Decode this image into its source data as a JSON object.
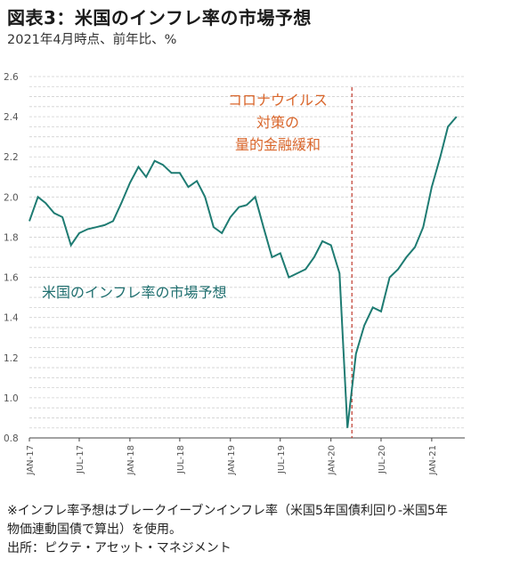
{
  "title": "図表3：米国のインフレ率の市場予想",
  "subtitle": "2021年4月時点、前年比、%",
  "footnotes": [
    "※インフレ率予想はブレークイーブンインフレ率（米国5年国債利回り-米国5年",
    "物価連動国債で算出）を使用。",
    "出所：ピクテ・アセット・マネジメント"
  ],
  "colors": {
    "line": "#1e7b72",
    "event_line": "#c0392b",
    "annotation": "#d9662b",
    "series_label": "#1f6f6f",
    "grid": "#d0d0d0"
  },
  "chart_data": {
    "type": "line",
    "title": "図表3：米国のインフレ率の市場予想",
    "subtitle": "2021年4月時点、前年比、%",
    "xlabel": "",
    "ylabel": "",
    "ylim": [
      0.8,
      2.6
    ],
    "yticks": [
      "2.6",
      "2.4",
      "2.2",
      "2.0",
      "1.8",
      "1.6",
      "1.4",
      "1.2",
      "1.0",
      "0.8"
    ],
    "xticks": [
      "JAN-17",
      "JUL-17",
      "JAN-18",
      "JUL-18",
      "JAN-19",
      "JUL-19",
      "JAN-20",
      "JUL-20",
      "JAN-21"
    ],
    "grid": true,
    "series": [
      {
        "name": "米国のインフレ率の市場予想",
        "x": [
          "2017-01",
          "2017-02",
          "2017-03",
          "2017-04",
          "2017-05",
          "2017-06",
          "2017-07",
          "2017-08",
          "2017-09",
          "2017-10",
          "2017-11",
          "2017-12",
          "2018-01",
          "2018-02",
          "2018-03",
          "2018-04",
          "2018-05",
          "2018-06",
          "2018-07",
          "2018-08",
          "2018-09",
          "2018-10",
          "2018-11",
          "2018-12",
          "2019-01",
          "2019-02",
          "2019-03",
          "2019-04",
          "2019-05",
          "2019-06",
          "2019-07",
          "2019-08",
          "2019-09",
          "2019-10",
          "2019-11",
          "2019-12",
          "2020-01",
          "2020-02",
          "2020-03",
          "2020-04",
          "2020-05",
          "2020-06",
          "2020-07",
          "2020-08",
          "2020-09",
          "2020-10",
          "2020-11",
          "2020-12",
          "2021-01",
          "2021-02",
          "2021-03",
          "2021-04"
        ],
        "values": [
          1.88,
          2.0,
          1.97,
          1.92,
          1.9,
          1.76,
          1.82,
          1.84,
          1.85,
          1.86,
          1.88,
          1.97,
          2.07,
          2.15,
          2.1,
          2.18,
          2.16,
          2.12,
          2.12,
          2.05,
          2.08,
          2.0,
          1.85,
          1.82,
          1.9,
          1.95,
          1.96,
          2.0,
          1.85,
          1.7,
          1.72,
          1.6,
          1.62,
          1.64,
          1.7,
          1.78,
          1.76,
          1.62,
          0.85,
          1.22,
          1.36,
          1.45,
          1.43,
          1.6,
          1.64,
          1.7,
          1.75,
          1.85,
          2.05,
          2.2,
          2.35,
          2.4
        ]
      }
    ],
    "annotations": [
      {
        "lines": [
          "コロナウイルス",
          "対策の",
          "量的金融緩和"
        ],
        "at": "2020-03"
      }
    ]
  }
}
